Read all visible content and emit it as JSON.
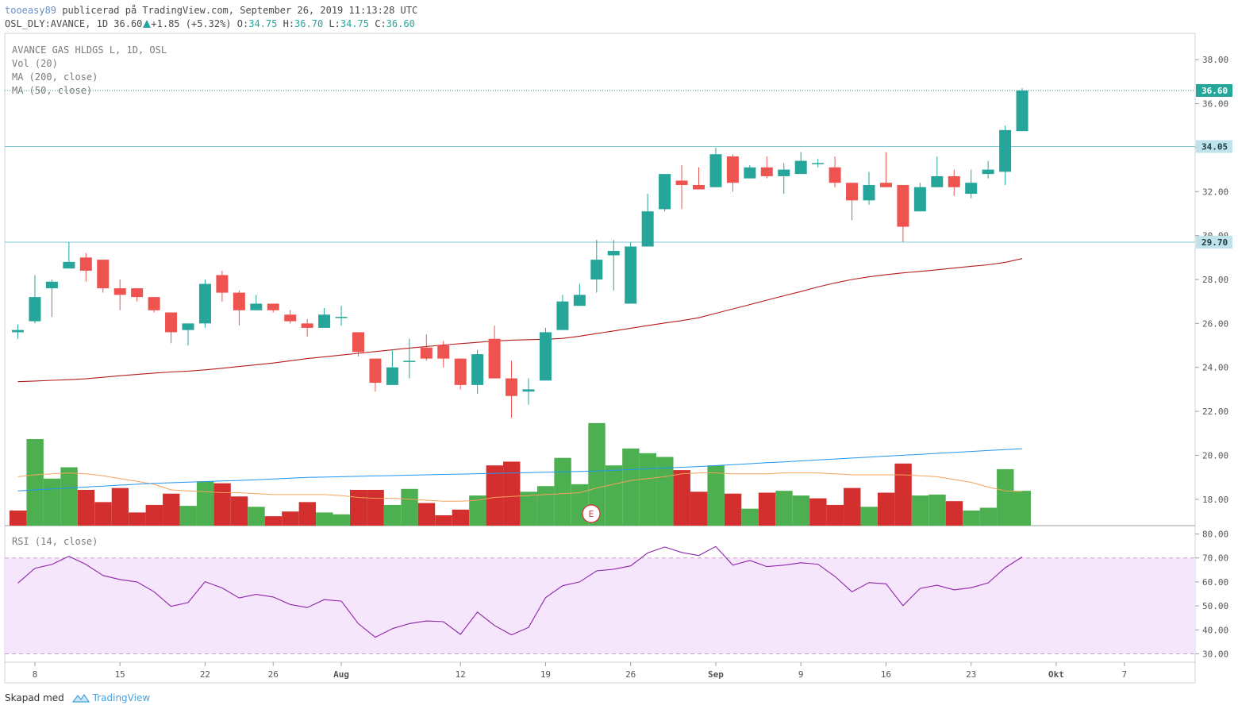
{
  "header": {
    "user": "tooeasy89",
    "published": "publicerad på TradingView.com, September 26, 2019 11:13:28 UTC",
    "symbol": "OSL_DLY:AVANCE, 1D 36.60",
    "change": "+1.85 (+5.32%)",
    "o_label": "O:",
    "o_value": "34.75",
    "h_label": "H:",
    "h_value": "36.70",
    "l_label": "L:",
    "l_value": "34.75",
    "c_label": "C:",
    "c_value": "36.60"
  },
  "legend": {
    "title": "AVANCE GAS HLDGS L, 1D, OSL",
    "vol": "Vol (20)",
    "ma200": "MA (200, close)",
    "ma50": "MA (50, close)",
    "rsi": "RSI (14, close)"
  },
  "event_marker": "E",
  "footer": {
    "text": "Skapad med",
    "brand": "TradingView"
  },
  "colors": {
    "up": "#26a69a",
    "down": "#ef5350",
    "vol_up": "#4caf50",
    "vol_down": "#d32f2f",
    "ma200": "#b71c1c",
    "vol_ma": "#f4a25b",
    "vol_ma_long": "#2196f3",
    "rsi_line": "#8e24aa",
    "rsi_band": "#f5e6fb",
    "hline": "#7ec8d4",
    "price_badge": "#26a69a",
    "level_badge": "#bfe3ea"
  },
  "chart_data": {
    "type": "candlestick",
    "price_axis": {
      "ticks": [
        "38.00",
        "36.00",
        "34.00",
        "32.00",
        "30.00",
        "28.00",
        "26.00",
        "24.00",
        "22.00",
        "20.00",
        "18.00"
      ],
      "range": [
        16.8,
        39.2
      ]
    },
    "current_price": "36.60",
    "levels": [
      "34.05",
      "29.70"
    ],
    "x_ticks": [
      {
        "label": "8",
        "i": 1
      },
      {
        "label": "15",
        "i": 6
      },
      {
        "label": "22",
        "i": 11
      },
      {
        "label": "26",
        "i": 15
      },
      {
        "label": "Aug",
        "i": 19
      },
      {
        "label": "12",
        "i": 26
      },
      {
        "label": "19",
        "i": 31
      },
      {
        "label": "26",
        "i": 36
      },
      {
        "label": "Sep",
        "i": 41
      },
      {
        "label": "9",
        "i": 46
      },
      {
        "label": "16",
        "i": 51
      },
      {
        "label": "23",
        "i": 56
      },
      {
        "label": "Okt",
        "i": 61
      },
      {
        "label": "7",
        "i": 65
      }
    ],
    "candles": [
      {
        "o": 25.6,
        "h": 25.95,
        "l": 25.3,
        "c": 25.7
      },
      {
        "o": 26.1,
        "h": 28.2,
        "l": 26.0,
        "c": 27.2
      },
      {
        "o": 27.6,
        "h": 28.0,
        "l": 26.3,
        "c": 27.9
      },
      {
        "o": 28.5,
        "h": 29.7,
        "l": 28.5,
        "c": 28.8
      },
      {
        "o": 29.0,
        "h": 29.2,
        "l": 27.9,
        "c": 28.4
      },
      {
        "o": 28.9,
        "h": 28.9,
        "l": 27.4,
        "c": 27.6
      },
      {
        "o": 27.6,
        "h": 28.0,
        "l": 26.6,
        "c": 27.3
      },
      {
        "o": 27.6,
        "h": 27.6,
        "l": 27.0,
        "c": 27.2
      },
      {
        "o": 27.2,
        "h": 27.2,
        "l": 26.5,
        "c": 26.6
      },
      {
        "o": 26.5,
        "h": 26.5,
        "l": 25.1,
        "c": 25.6
      },
      {
        "o": 25.7,
        "h": 26.0,
        "l": 25.0,
        "c": 26.0
      },
      {
        "o": 26.0,
        "h": 28.0,
        "l": 25.8,
        "c": 27.8
      },
      {
        "o": 28.2,
        "h": 28.4,
        "l": 27.0,
        "c": 27.4
      },
      {
        "o": 27.4,
        "h": 27.5,
        "l": 25.9,
        "c": 26.6
      },
      {
        "o": 26.6,
        "h": 27.3,
        "l": 26.6,
        "c": 26.9
      },
      {
        "o": 26.9,
        "h": 26.9,
        "l": 26.5,
        "c": 26.6
      },
      {
        "o": 26.4,
        "h": 26.6,
        "l": 26.0,
        "c": 26.1
      },
      {
        "o": 26.0,
        "h": 26.2,
        "l": 25.4,
        "c": 25.8
      },
      {
        "o": 25.8,
        "h": 26.7,
        "l": 25.8,
        "c": 26.4
      },
      {
        "o": 26.3,
        "h": 26.8,
        "l": 25.9,
        "c": 26.3
      },
      {
        "o": 25.6,
        "h": 25.6,
        "l": 24.5,
        "c": 24.7
      },
      {
        "o": 24.4,
        "h": 24.4,
        "l": 22.9,
        "c": 23.3
      },
      {
        "o": 23.2,
        "h": 24.8,
        "l": 23.2,
        "c": 24.0
      },
      {
        "o": 24.3,
        "h": 25.3,
        "l": 23.5,
        "c": 24.3
      },
      {
        "o": 24.9,
        "h": 25.5,
        "l": 24.3,
        "c": 24.4
      },
      {
        "o": 25.0,
        "h": 25.2,
        "l": 24.0,
        "c": 24.4
      },
      {
        "o": 24.4,
        "h": 24.4,
        "l": 23.0,
        "c": 23.2
      },
      {
        "o": 23.2,
        "h": 24.8,
        "l": 22.8,
        "c": 24.6
      },
      {
        "o": 25.3,
        "h": 25.9,
        "l": 23.5,
        "c": 23.5
      },
      {
        "o": 23.5,
        "h": 24.3,
        "l": 21.7,
        "c": 22.7
      },
      {
        "o": 22.9,
        "h": 23.5,
        "l": 22.3,
        "c": 23.0
      },
      {
        "o": 23.4,
        "h": 25.8,
        "l": 23.4,
        "c": 25.6
      },
      {
        "o": 25.7,
        "h": 27.3,
        "l": 25.7,
        "c": 27.0
      },
      {
        "o": 26.8,
        "h": 27.8,
        "l": 26.8,
        "c": 27.3
      },
      {
        "o": 28.0,
        "h": 29.8,
        "l": 27.4,
        "c": 28.9
      },
      {
        "o": 29.1,
        "h": 29.8,
        "l": 27.5,
        "c": 29.3
      },
      {
        "o": 26.9,
        "h": 29.7,
        "l": 26.9,
        "c": 29.5
      },
      {
        "o": 29.5,
        "h": 31.9,
        "l": 29.5,
        "c": 31.1
      },
      {
        "o": 31.2,
        "h": 32.8,
        "l": 31.1,
        "c": 32.8
      },
      {
        "o": 32.5,
        "h": 33.2,
        "l": 31.2,
        "c": 32.3
      },
      {
        "o": 32.3,
        "h": 33.1,
        "l": 32.1,
        "c": 32.1
      },
      {
        "o": 32.2,
        "h": 34.0,
        "l": 32.2,
        "c": 33.7
      },
      {
        "o": 33.6,
        "h": 33.7,
        "l": 32.0,
        "c": 32.4
      },
      {
        "o": 32.6,
        "h": 33.2,
        "l": 32.6,
        "c": 33.1
      },
      {
        "o": 33.1,
        "h": 33.6,
        "l": 32.6,
        "c": 32.7
      },
      {
        "o": 32.7,
        "h": 33.3,
        "l": 31.9,
        "c": 33.0
      },
      {
        "o": 32.8,
        "h": 33.8,
        "l": 32.8,
        "c": 33.4
      },
      {
        "o": 33.3,
        "h": 33.5,
        "l": 33.1,
        "c": 33.3
      },
      {
        "o": 33.1,
        "h": 33.6,
        "l": 32.2,
        "c": 32.4
      },
      {
        "o": 32.4,
        "h": 32.4,
        "l": 30.7,
        "c": 31.6
      },
      {
        "o": 31.6,
        "h": 32.9,
        "l": 31.4,
        "c": 32.3
      },
      {
        "o": 32.4,
        "h": 33.8,
        "l": 32.2,
        "c": 32.2
      },
      {
        "o": 32.3,
        "h": 32.3,
        "l": 29.7,
        "c": 30.4
      },
      {
        "o": 31.1,
        "h": 32.4,
        "l": 31.1,
        "c": 32.2
      },
      {
        "o": 32.2,
        "h": 33.6,
        "l": 32.2,
        "c": 32.7
      },
      {
        "o": 32.7,
        "h": 33.0,
        "l": 31.8,
        "c": 32.2
      },
      {
        "o": 31.9,
        "h": 33.0,
        "l": 31.7,
        "c": 32.4
      },
      {
        "o": 32.8,
        "h": 33.4,
        "l": 32.6,
        "c": 33.0
      },
      {
        "o": 32.9,
        "h": 35.0,
        "l": 32.3,
        "c": 34.8
      },
      {
        "o": 34.75,
        "h": 36.7,
        "l": 34.75,
        "c": 36.6
      }
    ],
    "ma50": [
      23.35,
      23.38,
      23.41,
      23.44,
      23.48,
      23.55,
      23.62,
      23.68,
      23.74,
      23.79,
      23.83,
      23.89,
      23.96,
      24.04,
      24.12,
      24.2,
      24.3,
      24.4,
      24.48,
      24.56,
      24.64,
      24.72,
      24.8,
      24.88,
      24.95,
      25.02,
      25.08,
      25.14,
      25.2,
      25.24,
      25.26,
      25.28,
      25.32,
      25.42,
      25.54,
      25.66,
      25.78,
      25.9,
      26.02,
      26.13,
      26.26,
      26.46,
      26.66,
      26.86,
      27.06,
      27.26,
      27.45,
      27.66,
      27.84,
      28.0,
      28.12,
      28.22,
      28.3,
      28.37,
      28.44,
      28.52,
      28.6,
      28.67,
      28.78,
      28.95
    ],
    "volume": [
      {
        "v": 0.8,
        "up": false
      },
      {
        "v": 4.6,
        "up": true
      },
      {
        "v": 2.5,
        "up": true
      },
      {
        "v": 3.1,
        "up": true
      },
      {
        "v": 1.9,
        "up": false
      },
      {
        "v": 1.25,
        "up": false
      },
      {
        "v": 2.0,
        "up": false
      },
      {
        "v": 0.7,
        "up": false
      },
      {
        "v": 1.1,
        "up": false
      },
      {
        "v": 1.7,
        "up": false
      },
      {
        "v": 1.05,
        "up": true
      },
      {
        "v": 2.35,
        "up": true
      },
      {
        "v": 2.25,
        "up": false
      },
      {
        "v": 1.55,
        "up": false
      },
      {
        "v": 1.0,
        "up": true
      },
      {
        "v": 0.5,
        "up": false
      },
      {
        "v": 0.75,
        "up": false
      },
      {
        "v": 1.25,
        "up": false
      },
      {
        "v": 0.7,
        "up": true
      },
      {
        "v": 0.6,
        "up": true
      },
      {
        "v": 1.9,
        "up": false
      },
      {
        "v": 1.9,
        "up": false
      },
      {
        "v": 1.1,
        "up": true
      },
      {
        "v": 1.95,
        "up": true
      },
      {
        "v": 1.2,
        "up": false
      },
      {
        "v": 0.55,
        "up": false
      },
      {
        "v": 0.85,
        "up": false
      },
      {
        "v": 1.6,
        "up": true
      },
      {
        "v": 3.2,
        "up": false
      },
      {
        "v": 3.4,
        "up": false
      },
      {
        "v": 1.8,
        "up": true
      },
      {
        "v": 2.1,
        "up": true
      },
      {
        "v": 3.6,
        "up": true
      },
      {
        "v": 2.2,
        "up": true
      },
      {
        "v": 5.45,
        "up": true
      },
      {
        "v": 3.2,
        "up": true
      },
      {
        "v": 4.1,
        "up": true
      },
      {
        "v": 3.85,
        "up": true
      },
      {
        "v": 3.65,
        "up": true
      },
      {
        "v": 2.95,
        "up": false
      },
      {
        "v": 1.8,
        "up": false
      },
      {
        "v": 3.2,
        "up": true
      },
      {
        "v": 1.7,
        "up": false
      },
      {
        "v": 0.9,
        "up": true
      },
      {
        "v": 1.75,
        "up": false
      },
      {
        "v": 1.85,
        "up": true
      },
      {
        "v": 1.6,
        "up": true
      },
      {
        "v": 1.45,
        "up": false
      },
      {
        "v": 1.1,
        "up": false
      },
      {
        "v": 2.0,
        "up": false
      },
      {
        "v": 1.0,
        "up": true
      },
      {
        "v": 1.75,
        "up": false
      },
      {
        "v": 3.3,
        "up": false
      },
      {
        "v": 1.6,
        "up": true
      },
      {
        "v": 1.65,
        "up": true
      },
      {
        "v": 1.3,
        "up": false
      },
      {
        "v": 0.8,
        "up": true
      },
      {
        "v": 0.95,
        "up": true
      },
      {
        "v": 3.0,
        "up": true
      },
      {
        "v": 1.85,
        "up": true
      }
    ],
    "vol_ma": [
      2.6,
      2.7,
      2.75,
      2.8,
      2.75,
      2.65,
      2.5,
      2.35,
      2.2,
      1.9,
      1.85,
      1.8,
      1.75,
      1.75,
      1.7,
      1.65,
      1.65,
      1.65,
      1.65,
      1.6,
      1.5,
      1.45,
      1.45,
      1.4,
      1.35,
      1.3,
      1.3,
      1.35,
      1.5,
      1.55,
      1.6,
      1.65,
      1.7,
      1.75,
      2.0,
      2.2,
      2.4,
      2.5,
      2.6,
      2.75,
      2.8,
      2.8,
      2.75,
      2.75,
      2.75,
      2.8,
      2.8,
      2.8,
      2.75,
      2.7,
      2.7,
      2.7,
      2.7,
      2.65,
      2.6,
      2.45,
      2.3,
      2.05,
      1.85,
      1.8
    ],
    "vol_ma_long": [
      1.85,
      1.9,
      1.95,
      2.0,
      2.05,
      2.1,
      2.15,
      2.2,
      2.25,
      2.28,
      2.31,
      2.34,
      2.37,
      2.4,
      2.44,
      2.48,
      2.52,
      2.56,
      2.58,
      2.6,
      2.62,
      2.64,
      2.66,
      2.68,
      2.7,
      2.72,
      2.74,
      2.76,
      2.78,
      2.8,
      2.82,
      2.84,
      2.86,
      2.88,
      2.9,
      2.94,
      2.98,
      3.02,
      3.06,
      3.1,
      3.14,
      3.19,
      3.24,
      3.29,
      3.34,
      3.39,
      3.44,
      3.49,
      3.54,
      3.59,
      3.64,
      3.69,
      3.74,
      3.79,
      3.84,
      3.89,
      3.94,
      3.99,
      4.04,
      4.09
    ],
    "rsi_axis": {
      "ticks": [
        "80.00",
        "70.00",
        "60.00",
        "50.00",
        "40.00",
        "30.00"
      ],
      "range": [
        26.5,
        83.5
      ]
    },
    "rsi": [
      59.5,
      65.7,
      67.3,
      70.7,
      67.3,
      62.7,
      61.0,
      60.0,
      55.9,
      49.8,
      51.4,
      60.1,
      57.5,
      53.3,
      54.8,
      53.7,
      50.6,
      49.3,
      52.6,
      52.0,
      42.6,
      36.9,
      40.5,
      42.6,
      43.7,
      43.4,
      38.1,
      47.4,
      41.8,
      37.9,
      41.0,
      53.4,
      58.4,
      60.0,
      64.6,
      65.3,
      66.7,
      72.1,
      74.6,
      72.3,
      71.0,
      74.8,
      67.0,
      69.0,
      66.4,
      67.0,
      68.0,
      67.4,
      62.3,
      55.9,
      59.7,
      59.2,
      50.1,
      57.3,
      58.6,
      56.7,
      57.6,
      59.6,
      65.9,
      70.4
    ]
  }
}
